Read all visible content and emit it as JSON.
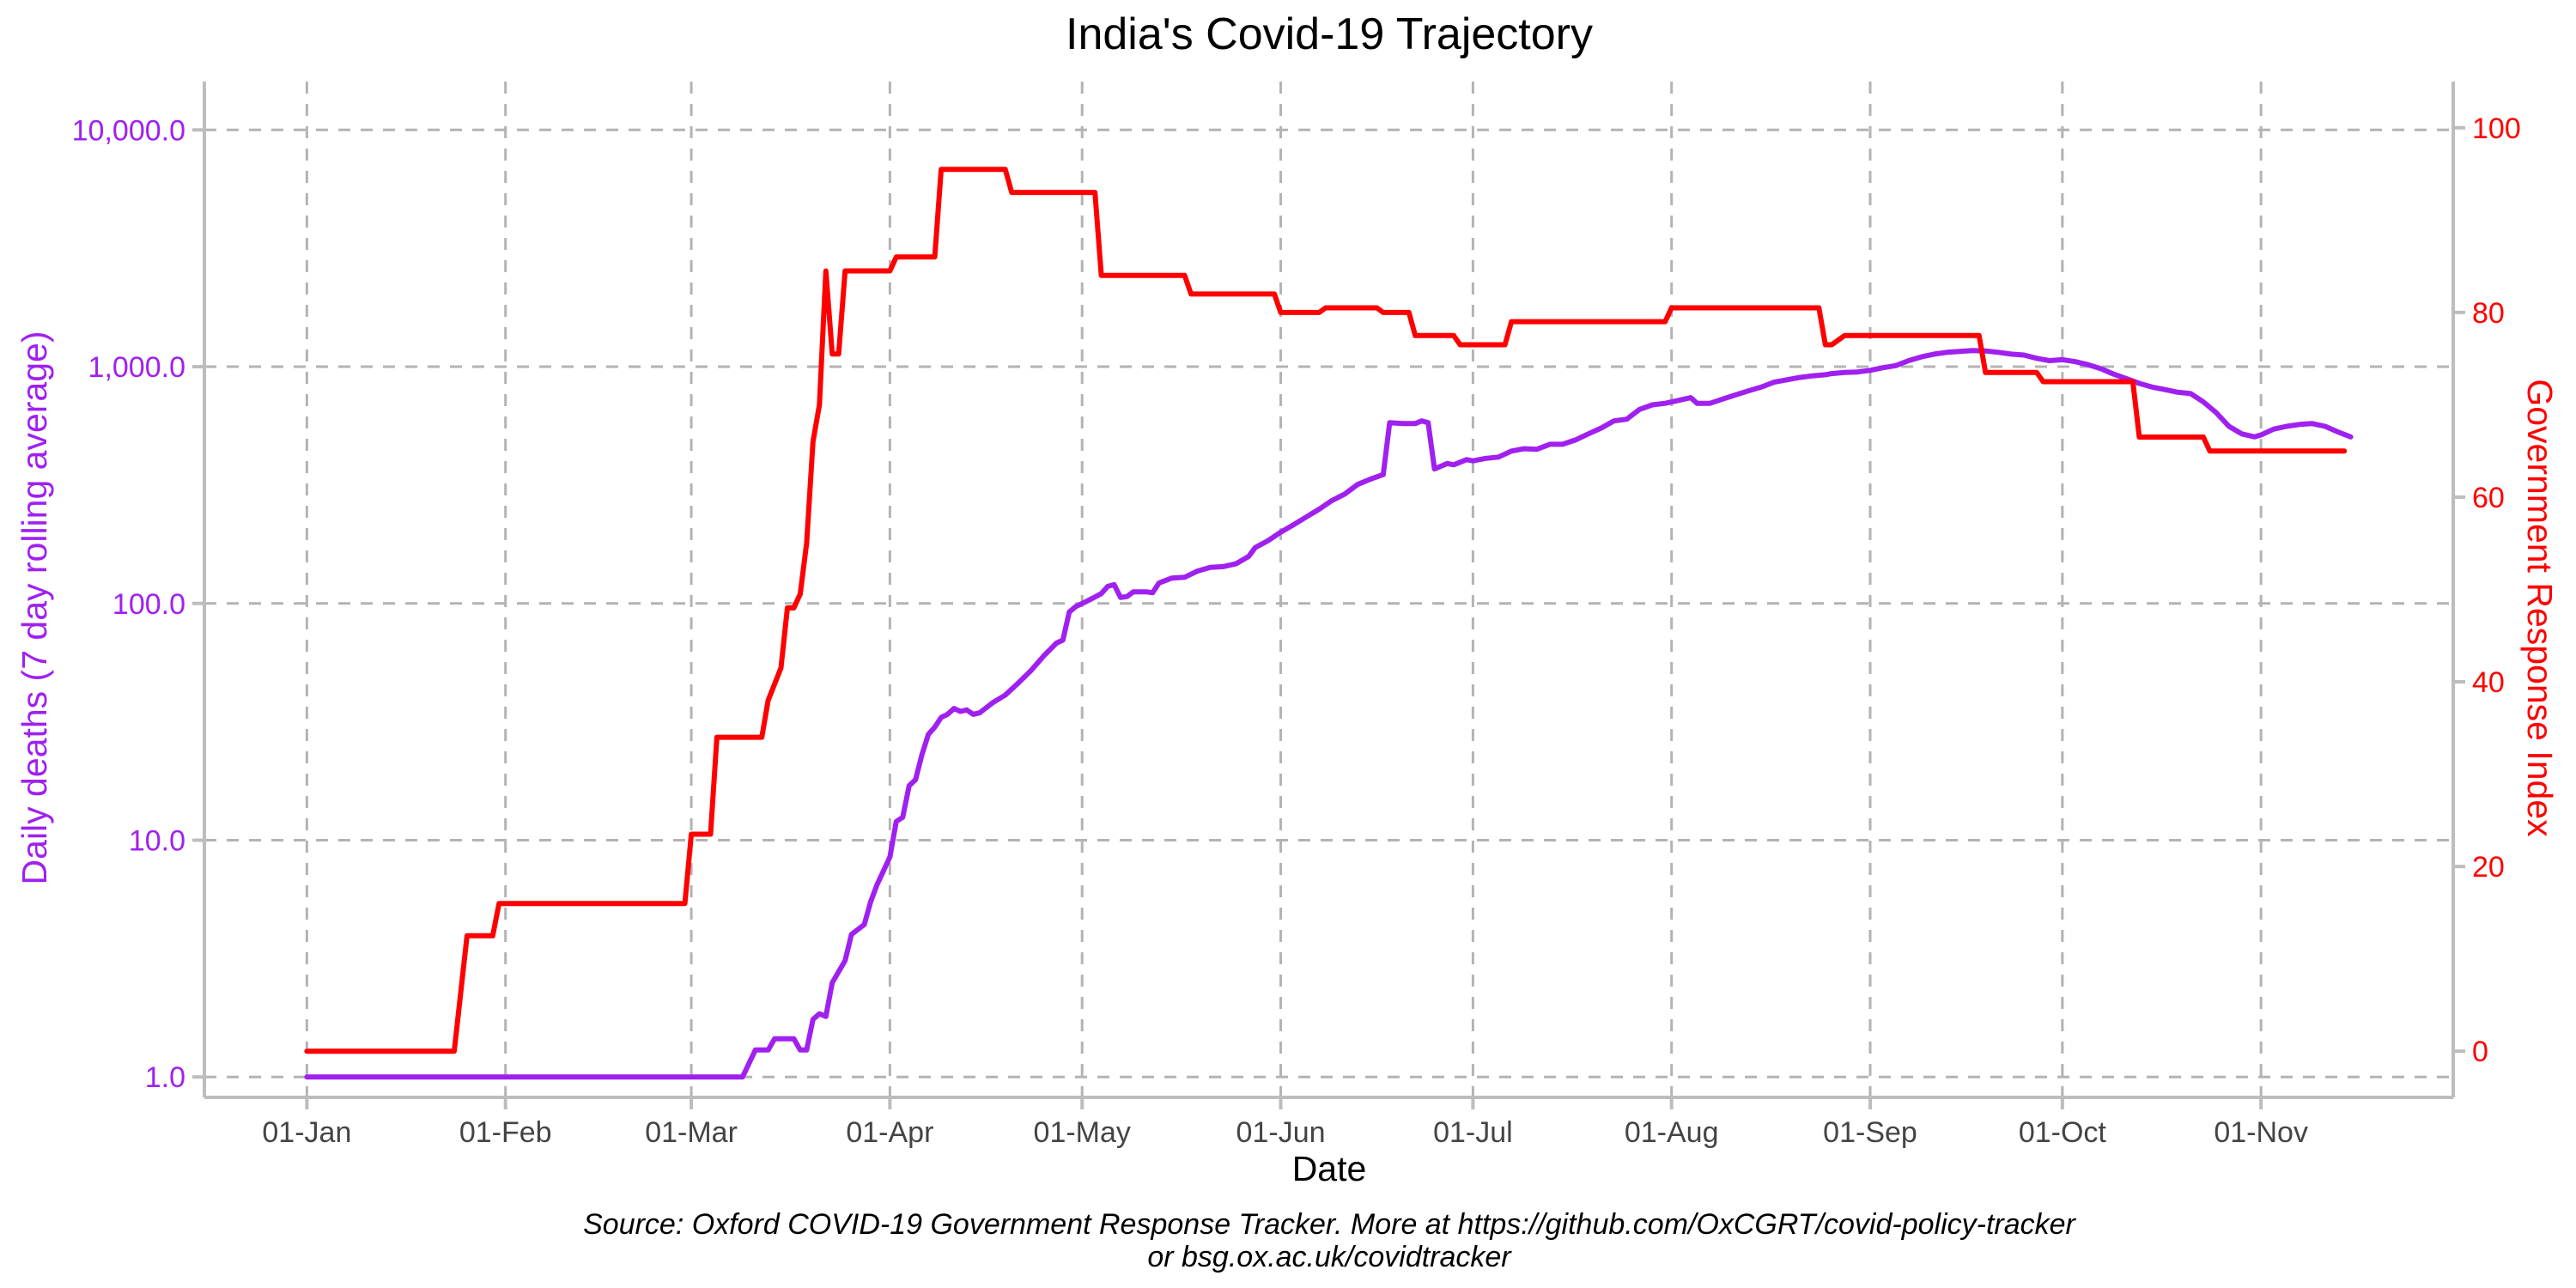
{
  "chart_data": {
    "type": "line",
    "title": "India's Covid-19 Trajectory",
    "xlabel": "Date",
    "ylabel_left": "Daily deaths (7 day rolling average)",
    "ylabel_right": "Government Response Index",
    "x_ticks": [
      {
        "day": 0,
        "label": "01-Jan"
      },
      {
        "day": 31,
        "label": "01-Feb"
      },
      {
        "day": 60,
        "label": "01-Mar"
      },
      {
        "day": 91,
        "label": "01-Apr"
      },
      {
        "day": 121,
        "label": "01-May"
      },
      {
        "day": 152,
        "label": "01-Jun"
      },
      {
        "day": 182,
        "label": "01-Jul"
      },
      {
        "day": 213,
        "label": "01-Aug"
      },
      {
        "day": 244,
        "label": "01-Sep"
      },
      {
        "day": 274,
        "label": "01-Oct"
      },
      {
        "day": 305,
        "label": "01-Nov"
      }
    ],
    "x_range_days": [
      -16,
      335
    ],
    "y_left": {
      "scale": "log10",
      "range": [
        0.82,
        16000
      ],
      "ticks": [
        {
          "value": 1,
          "label": "1.0"
        },
        {
          "value": 10,
          "label": "10.0"
        },
        {
          "value": 100,
          "label": "100.0"
        },
        {
          "value": 1000,
          "label": "1,000.0"
        },
        {
          "value": 10000,
          "label": "10,000.0"
        }
      ]
    },
    "y_right": {
      "scale": "linear",
      "range": [
        -5,
        105
      ],
      "ticks": [
        {
          "value": 0,
          "label": "0"
        },
        {
          "value": 20,
          "label": "20"
        },
        {
          "value": 40,
          "label": "40"
        },
        {
          "value": 60,
          "label": "60"
        },
        {
          "value": 80,
          "label": "80"
        },
        {
          "value": 100,
          "label": "100"
        }
      ]
    },
    "series": [
      {
        "name": "Daily deaths (7 day rolling average)",
        "axis": "left",
        "color": "#a020f0",
        "points": [
          [
            0,
            1
          ],
          [
            68,
            1
          ],
          [
            70,
            1.3
          ],
          [
            72,
            1.3
          ],
          [
            73,
            1.45
          ],
          [
            76,
            1.45
          ],
          [
            77,
            1.3
          ],
          [
            78,
            1.3
          ],
          [
            79,
            1.75
          ],
          [
            80,
            1.85
          ],
          [
            81,
            1.8
          ],
          [
            82,
            2.5
          ],
          [
            84,
            3.1
          ],
          [
            85,
            4
          ],
          [
            87,
            4.4
          ],
          [
            88,
            5.5
          ],
          [
            89,
            6.5
          ],
          [
            91,
            8.5
          ],
          [
            92,
            12
          ],
          [
            93,
            12.5
          ],
          [
            94,
            17
          ],
          [
            95,
            18
          ],
          [
            96,
            23
          ],
          [
            97,
            28
          ],
          [
            98,
            30
          ],
          [
            99,
            33
          ],
          [
            100,
            34
          ],
          [
            101,
            36
          ],
          [
            102,
            35
          ],
          [
            103,
            35.5
          ],
          [
            104,
            34
          ],
          [
            105,
            34.5
          ],
          [
            107,
            38
          ],
          [
            109,
            41
          ],
          [
            111,
            46
          ],
          [
            113,
            52
          ],
          [
            115,
            60
          ],
          [
            117,
            68
          ],
          [
            118,
            70
          ],
          [
            119,
            92
          ],
          [
            120,
            97
          ],
          [
            122,
            103
          ],
          [
            124,
            110
          ],
          [
            125,
            118
          ],
          [
            126,
            120
          ],
          [
            127,
            106
          ],
          [
            128,
            107
          ],
          [
            129,
            112
          ],
          [
            131,
            112
          ],
          [
            132,
            111
          ],
          [
            133,
            122
          ],
          [
            135,
            128
          ],
          [
            137,
            129
          ],
          [
            139,
            137
          ],
          [
            141,
            142
          ],
          [
            143,
            143
          ],
          [
            145,
            147
          ],
          [
            147,
            158
          ],
          [
            148,
            172
          ],
          [
            150,
            184
          ],
          [
            152,
            200
          ],
          [
            154,
            215
          ],
          [
            156,
            232
          ],
          [
            158,
            250
          ],
          [
            160,
            272
          ],
          [
            162,
            290
          ],
          [
            164,
            318
          ],
          [
            166,
            335
          ],
          [
            168,
            350
          ],
          [
            169,
            580
          ],
          [
            171,
            575
          ],
          [
            173,
            575
          ],
          [
            174,
            590
          ],
          [
            175,
            580
          ],
          [
            176,
            370
          ],
          [
            178,
            390
          ],
          [
            179,
            385
          ],
          [
            181,
            405
          ],
          [
            182,
            400
          ],
          [
            184,
            410
          ],
          [
            186,
            415
          ],
          [
            188,
            440
          ],
          [
            190,
            450
          ],
          [
            192,
            448
          ],
          [
            194,
            470
          ],
          [
            196,
            470
          ],
          [
            198,
            490
          ],
          [
            200,
            520
          ],
          [
            202,
            550
          ],
          [
            204,
            590
          ],
          [
            206,
            600
          ],
          [
            208,
            660
          ],
          [
            210,
            690
          ],
          [
            212,
            700
          ],
          [
            214,
            720
          ],
          [
            216,
            740
          ],
          [
            217,
            700
          ],
          [
            219,
            700
          ],
          [
            221,
            730
          ],
          [
            223,
            760
          ],
          [
            225,
            790
          ],
          [
            227,
            820
          ],
          [
            229,
            860
          ],
          [
            231,
            880
          ],
          [
            233,
            900
          ],
          [
            235,
            915
          ],
          [
            237,
            925
          ],
          [
            238,
            935
          ],
          [
            240,
            945
          ],
          [
            242,
            950
          ],
          [
            244,
            965
          ],
          [
            246,
            990
          ],
          [
            248,
            1010
          ],
          [
            250,
            1060
          ],
          [
            252,
            1100
          ],
          [
            254,
            1130
          ],
          [
            256,
            1150
          ],
          [
            258,
            1160
          ],
          [
            260,
            1170
          ],
          [
            262,
            1165
          ],
          [
            264,
            1150
          ],
          [
            266,
            1130
          ],
          [
            268,
            1120
          ],
          [
            270,
            1085
          ],
          [
            272,
            1060
          ],
          [
            274,
            1070
          ],
          [
            276,
            1050
          ],
          [
            278,
            1020
          ],
          [
            280,
            980
          ],
          [
            282,
            930
          ],
          [
            284,
            890
          ],
          [
            286,
            850
          ],
          [
            288,
            820
          ],
          [
            290,
            800
          ],
          [
            292,
            780
          ],
          [
            294,
            770
          ],
          [
            296,
            710
          ],
          [
            298,
            640
          ],
          [
            300,
            560
          ],
          [
            302,
            520
          ],
          [
            304,
            505
          ],
          [
            305,
            515
          ],
          [
            307,
            545
          ],
          [
            309,
            560
          ],
          [
            311,
            570
          ],
          [
            313,
            575
          ],
          [
            315,
            560
          ],
          [
            317,
            530
          ],
          [
            319,
            505
          ]
        ]
      },
      {
        "name": "Government Response Index",
        "axis": "right",
        "color": "#ff0000",
        "points": [
          [
            0,
            0
          ],
          [
            23,
            0
          ],
          [
            25,
            12.5
          ],
          [
            29,
            12.5
          ],
          [
            30,
            16
          ],
          [
            59,
            16
          ],
          [
            60,
            23.5
          ],
          [
            63,
            23.5
          ],
          [
            64,
            34
          ],
          [
            71,
            34
          ],
          [
            72,
            38
          ],
          [
            74,
            41.5
          ],
          [
            75,
            48
          ],
          [
            76,
            48
          ],
          [
            77,
            49.5
          ],
          [
            78,
            55
          ],
          [
            79,
            66
          ],
          [
            80,
            70
          ],
          [
            81,
            84.5
          ],
          [
            82,
            75.5
          ],
          [
            83,
            75.5
          ],
          [
            84,
            84.5
          ],
          [
            91,
            84.5
          ],
          [
            92,
            86
          ],
          [
            98,
            86
          ],
          [
            99,
            95.5
          ],
          [
            109,
            95.5
          ],
          [
            110,
            93
          ],
          [
            123,
            93
          ],
          [
            124,
            84
          ],
          [
            137,
            84
          ],
          [
            138,
            82
          ],
          [
            151,
            82
          ],
          [
            152,
            80
          ],
          [
            158,
            80
          ],
          [
            159,
            80.5
          ],
          [
            167,
            80.5
          ],
          [
            168,
            80
          ],
          [
            172,
            80
          ],
          [
            173,
            77.5
          ],
          [
            179,
            77.5
          ],
          [
            180,
            76.5
          ],
          [
            187,
            76.5
          ],
          [
            188,
            79
          ],
          [
            212,
            79
          ],
          [
            213,
            80.5
          ],
          [
            236,
            80.5
          ],
          [
            237,
            76.5
          ],
          [
            238,
            76.5
          ],
          [
            240,
            77.5
          ],
          [
            261,
            77.5
          ],
          [
            262,
            73.5
          ],
          [
            270,
            73.5
          ],
          [
            271,
            72.5
          ],
          [
            285,
            72.5
          ],
          [
            286,
            66.5
          ],
          [
            296,
            66.5
          ],
          [
            297,
            65
          ],
          [
            318,
            65
          ]
        ]
      }
    ],
    "caption_line1": "Source: Oxford COVID-19 Government Response Tracker. More at https://github.com/OxCGRT/covid-policy-tracker",
    "caption_line2": "or bsg.ox.ac.uk/covidtracker"
  },
  "colors": {
    "deaths": "#a020f0",
    "index": "#ff0000",
    "grid": "#b3b3b3",
    "axis": "#bdbdbd",
    "tick_text": "#444444"
  }
}
